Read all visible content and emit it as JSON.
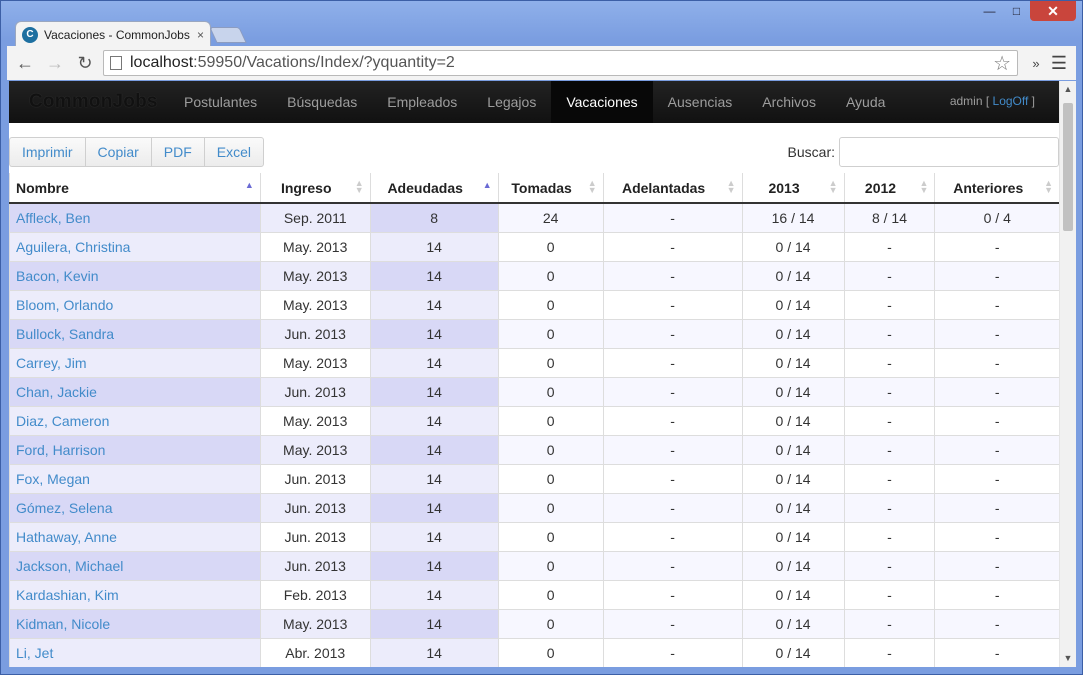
{
  "browser": {
    "tab_title": "Vacaciones - CommonJobs",
    "tab_favicon": "C",
    "tab_close": "×",
    "url_host": "localhost",
    "url_path": ":59950/Vacations/Index/?yquantity=2"
  },
  "navbar": {
    "brand": "CommonJobs",
    "items": [
      "Postulantes",
      "Búsquedas",
      "Empleados",
      "Legajos",
      "Vacaciones",
      "Ausencias",
      "Archivos",
      "Ayuda"
    ],
    "active": "Vacaciones",
    "user": "admin",
    "logoff": "LogOff"
  },
  "toolbar": {
    "buttons": [
      "Imprimir",
      "Copiar",
      "PDF",
      "Excel"
    ],
    "search_label": "Buscar:"
  },
  "table": {
    "columns": [
      "Nombre",
      "Ingreso",
      "Adeudadas",
      "Tomadas",
      "Adelantadas",
      "2013",
      "2012",
      "Anteriores"
    ],
    "rows": [
      [
        "Affleck, Ben",
        "Sep. 2011",
        "8",
        "24",
        "-",
        "16 / 14",
        "8 / 14",
        "0 / 4"
      ],
      [
        "Aguilera, Christina",
        "May. 2013",
        "14",
        "0",
        "-",
        "0 / 14",
        "-",
        "-"
      ],
      [
        "Bacon, Kevin",
        "May. 2013",
        "14",
        "0",
        "-",
        "0 / 14",
        "-",
        "-"
      ],
      [
        "Bloom, Orlando",
        "May. 2013",
        "14",
        "0",
        "-",
        "0 / 14",
        "-",
        "-"
      ],
      [
        "Bullock, Sandra",
        "Jun. 2013",
        "14",
        "0",
        "-",
        "0 / 14",
        "-",
        "-"
      ],
      [
        "Carrey, Jim",
        "May. 2013",
        "14",
        "0",
        "-",
        "0 / 14",
        "-",
        "-"
      ],
      [
        "Chan, Jackie",
        "Jun. 2013",
        "14",
        "0",
        "-",
        "0 / 14",
        "-",
        "-"
      ],
      [
        "Diaz, Cameron",
        "May. 2013",
        "14",
        "0",
        "-",
        "0 / 14",
        "-",
        "-"
      ],
      [
        "Ford, Harrison",
        "May. 2013",
        "14",
        "0",
        "-",
        "0 / 14",
        "-",
        "-"
      ],
      [
        "Fox, Megan",
        "Jun. 2013",
        "14",
        "0",
        "-",
        "0 / 14",
        "-",
        "-"
      ],
      [
        "Gómez, Selena",
        "Jun. 2013",
        "14",
        "0",
        "-",
        "0 / 14",
        "-",
        "-"
      ],
      [
        "Hathaway, Anne",
        "Jun. 2013",
        "14",
        "0",
        "-",
        "0 / 14",
        "-",
        "-"
      ],
      [
        "Jackson, Michael",
        "Jun. 2013",
        "14",
        "0",
        "-",
        "0 / 14",
        "-",
        "-"
      ],
      [
        "Kardashian, Kim",
        "Feb. 2013",
        "14",
        "0",
        "-",
        "0 / 14",
        "-",
        "-"
      ],
      [
        "Kidman, Nicole",
        "May. 2013",
        "14",
        "0",
        "-",
        "0 / 14",
        "-",
        "-"
      ],
      [
        "Li, Jet",
        "Abr. 2013",
        "14",
        "0",
        "-",
        "0 / 14",
        "-",
        "-"
      ]
    ]
  },
  "colors": {
    "link": "#428bca",
    "navbar_bg": "#111111",
    "sorted_column": "#d8d8f6"
  }
}
